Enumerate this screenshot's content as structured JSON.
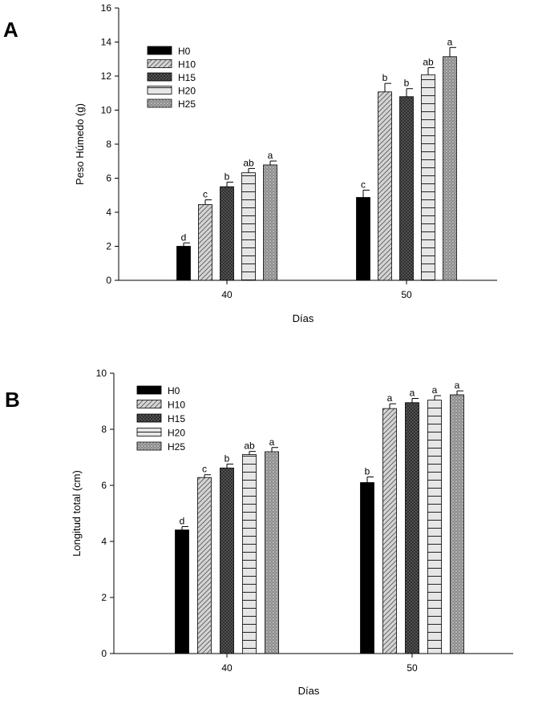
{
  "chart_data": [
    {
      "type": "bar",
      "panel": "A",
      "title": "",
      "xlabel": "Días",
      "ylabel": "Peso Húmedo (g)",
      "ylim": [
        0,
        16
      ],
      "yticks": [
        0,
        2,
        4,
        6,
        8,
        10,
        12,
        14,
        16
      ],
      "categories": [
        "40",
        "50"
      ],
      "legend_position": "top-left",
      "series": [
        {
          "name": "H0",
          "values": [
            2.0,
            4.87
          ],
          "errors": [
            0.2,
            0.43
          ],
          "letters": [
            "d",
            "c"
          ]
        },
        {
          "name": "H10",
          "values": [
            4.45,
            11.07
          ],
          "errors": [
            0.28,
            0.5
          ],
          "letters": [
            "c",
            "b"
          ]
        },
        {
          "name": "H15",
          "values": [
            5.5,
            10.79
          ],
          "errors": [
            0.27,
            0.47
          ],
          "letters": [
            "b",
            "b"
          ]
        },
        {
          "name": "H20",
          "values": [
            6.32,
            12.08
          ],
          "errors": [
            0.25,
            0.42
          ],
          "letters": [
            "ab",
            "ab"
          ]
        },
        {
          "name": "H25",
          "values": [
            6.78,
            13.14
          ],
          "errors": [
            0.23,
            0.54
          ],
          "letters": [
            "a",
            "a"
          ]
        }
      ]
    },
    {
      "type": "bar",
      "panel": "B",
      "title": "",
      "xlabel": "Días",
      "ylabel": "Longitud total (cm)",
      "ylim": [
        0,
        10
      ],
      "yticks": [
        0,
        2,
        4,
        6,
        8,
        10
      ],
      "categories": [
        "40",
        "50"
      ],
      "legend_position": "top-left",
      "series": [
        {
          "name": "H0",
          "values": [
            4.41,
            6.1
          ],
          "errors": [
            0.12,
            0.2
          ],
          "letters": [
            "d",
            "b"
          ]
        },
        {
          "name": "H10",
          "values": [
            6.28,
            8.74
          ],
          "errors": [
            0.1,
            0.17
          ],
          "letters": [
            "c",
            "a"
          ]
        },
        {
          "name": "H15",
          "values": [
            6.62,
            8.95
          ],
          "errors": [
            0.14,
            0.15
          ],
          "letters": [
            "b",
            "a"
          ]
        },
        {
          "name": "H20",
          "values": [
            7.1,
            9.04
          ],
          "errors": [
            0.11,
            0.16
          ],
          "letters": [
            "ab",
            "a"
          ]
        },
        {
          "name": "H25",
          "values": [
            7.2,
            9.23
          ],
          "errors": [
            0.15,
            0.14
          ],
          "letters": [
            "a",
            "a"
          ]
        }
      ]
    }
  ],
  "colors": {
    "axis": "#000000",
    "H0": "#000000",
    "H10": "#d0d0d0",
    "H15": "#3a3a3a",
    "H20": "#e4e4e4",
    "H25": "#9a9a9a"
  }
}
